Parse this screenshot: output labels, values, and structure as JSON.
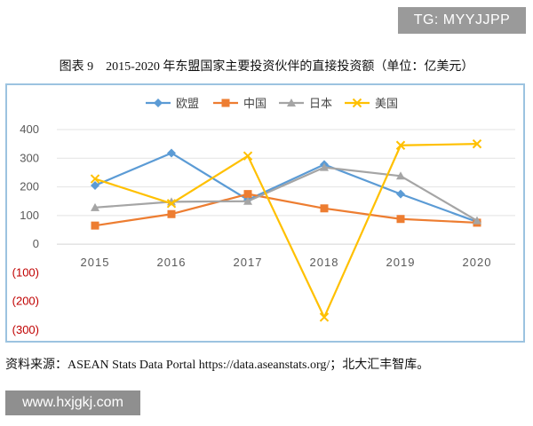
{
  "watermark_top": "TG: MYYJJPP",
  "figure_title": "图表 9　2015-2020 年东盟国家主要投资伙伴的直接投资额（单位：亿美元）",
  "source_note": "资料来源：ASEAN Stats Data Portal https://data.aseanstats.org/；北大汇丰智库。",
  "watermark_bottom": "www.hxjgkj.com",
  "chart_data": {
    "type": "line",
    "title": "2015-2020 年东盟国家主要投资伙伴的直接投资额",
    "ylabel": "亿美元",
    "categories": [
      "2015",
      "2016",
      "2017",
      "2018",
      "2019",
      "2020"
    ],
    "ylim": [
      -300,
      400
    ],
    "yticks": [
      400,
      300,
      200,
      100,
      0,
      -100,
      -200,
      -300
    ],
    "ytick_labels": [
      "400",
      "300",
      "200",
      "100",
      "0",
      "(100)",
      "(200)",
      "(300)"
    ],
    "negative_tick_color": "#c00000",
    "positive_tick_color": "#595959",
    "legend_position": "top-center",
    "grid": true,
    "series": [
      {
        "name": "欧盟",
        "marker": "diamond",
        "color": "#5b9bd5",
        "values": [
          205,
          318,
          155,
          278,
          175,
          78
        ]
      },
      {
        "name": "中国",
        "marker": "square",
        "color": "#ed7d31",
        "values": [
          65,
          105,
          175,
          125,
          88,
          75
        ]
      },
      {
        "name": "日本",
        "marker": "triangle",
        "color": "#a5a5a5",
        "values": [
          128,
          148,
          150,
          268,
          238,
          82
        ]
      },
      {
        "name": "美国",
        "marker": "x",
        "color": "#ffc000",
        "values": [
          228,
          142,
          308,
          -255,
          345,
          350
        ]
      }
    ]
  }
}
